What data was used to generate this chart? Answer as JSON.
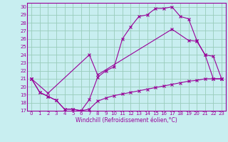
{
  "xlabel": "Windchill (Refroidissement éolien,°C)",
  "bg_color": "#c8eef0",
  "line_color": "#990099",
  "grid_color": "#99ccbb",
  "xlim": [
    -0.5,
    23.5
  ],
  "ylim": [
    17,
    30.5
  ],
  "xticks": [
    0,
    1,
    2,
    3,
    4,
    5,
    6,
    7,
    8,
    9,
    10,
    11,
    12,
    13,
    14,
    15,
    16,
    17,
    18,
    19,
    20,
    21,
    22,
    23
  ],
  "yticks": [
    17,
    18,
    19,
    20,
    21,
    22,
    23,
    24,
    25,
    26,
    27,
    28,
    29,
    30
  ],
  "series1_x": [
    0,
    1,
    2,
    3,
    4,
    5,
    6,
    7,
    8,
    9,
    10,
    11,
    12,
    13,
    14,
    15,
    16,
    17,
    18,
    19,
    20,
    21,
    22,
    23
  ],
  "series1_y": [
    21.0,
    19.3,
    18.8,
    18.3,
    17.2,
    17.2,
    17.0,
    17.2,
    18.2,
    18.6,
    18.9,
    19.1,
    19.3,
    19.5,
    19.7,
    19.9,
    20.1,
    20.3,
    20.5,
    20.7,
    20.8,
    21.0,
    21.0,
    21.0
  ],
  "series2_x": [
    0,
    1,
    2,
    3,
    4,
    5,
    6,
    7,
    8,
    9,
    10,
    11,
    12,
    13,
    14,
    15,
    16,
    17,
    18,
    19,
    20,
    21,
    22,
    23
  ],
  "series2_y": [
    21.0,
    19.3,
    18.8,
    18.3,
    17.2,
    17.2,
    17.0,
    18.4,
    21.2,
    22.0,
    22.5,
    26.0,
    27.5,
    28.8,
    29.0,
    29.8,
    29.8,
    30.0,
    28.8,
    28.5,
    25.8,
    24.0,
    21.0,
    21.0
  ],
  "series3_x": [
    0,
    2,
    7,
    8,
    17,
    19,
    20,
    21,
    22,
    23
  ],
  "series3_y": [
    21.0,
    19.2,
    24.0,
    21.5,
    27.2,
    25.8,
    25.7,
    24.0,
    23.8,
    21.0
  ]
}
